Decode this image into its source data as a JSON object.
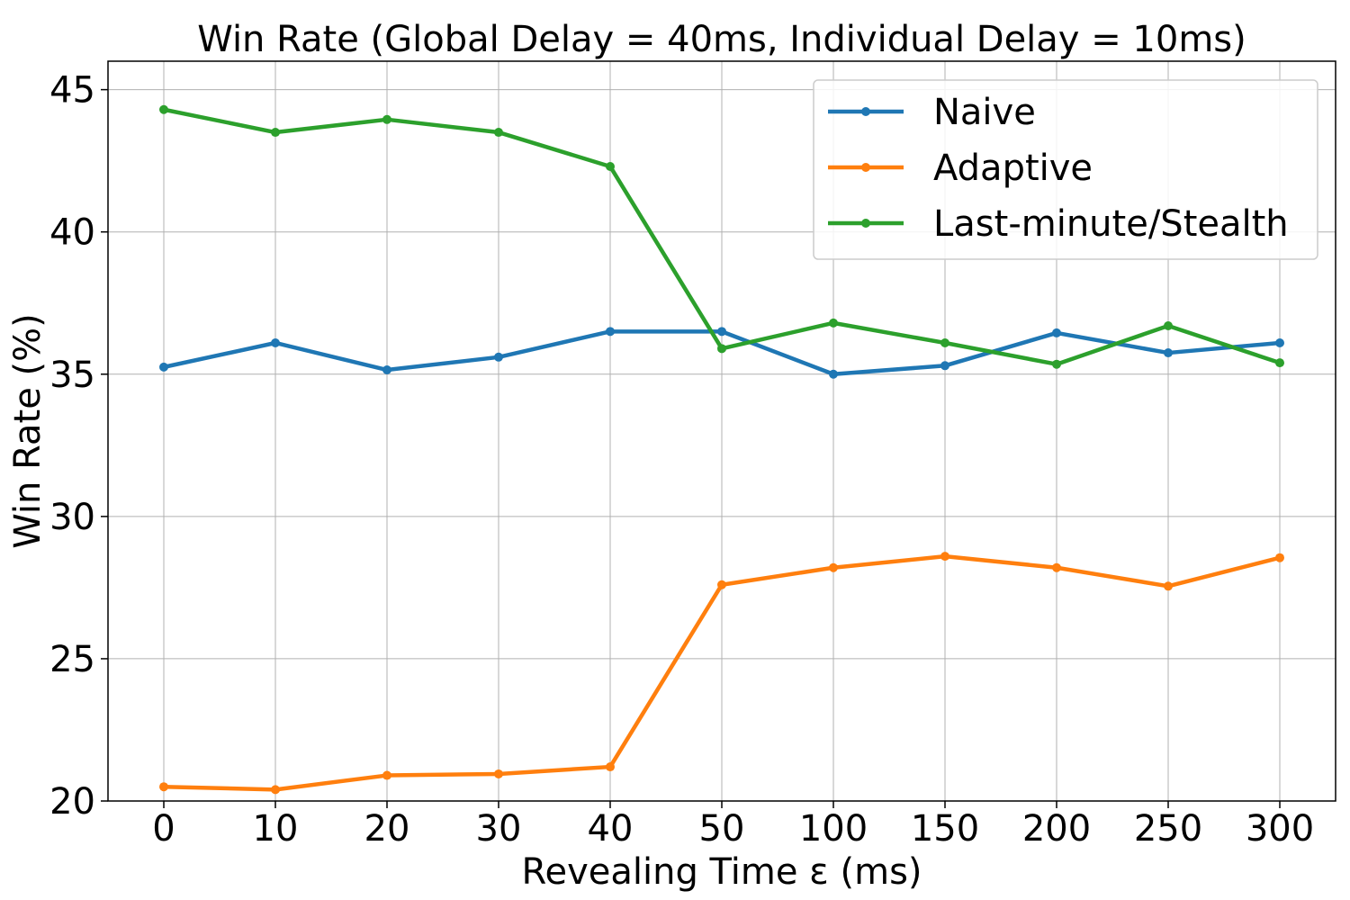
{
  "chart_data": {
    "type": "line",
    "title": "Win Rate (Global Delay = 40ms, Individual Delay = 10ms)",
    "xlabel": "Revealing Time ε (ms)",
    "ylabel": "Win Rate (%)",
    "categories": [
      "0",
      "10",
      "20",
      "30",
      "40",
      "50",
      "100",
      "150",
      "200",
      "250",
      "300"
    ],
    "ylim": [
      20,
      46
    ],
    "yticks": [
      20,
      25,
      30,
      35,
      40,
      45
    ],
    "grid": true,
    "legend_position": "top-right",
    "series": [
      {
        "name": "Naive",
        "color": "#1f77b4",
        "values": [
          35.25,
          36.1,
          35.15,
          35.6,
          36.5,
          36.5,
          35.0,
          35.3,
          36.45,
          35.75,
          36.1
        ]
      },
      {
        "name": "Adaptive",
        "color": "#ff7f0e",
        "values": [
          20.5,
          20.4,
          20.9,
          20.95,
          21.2,
          27.6,
          28.2,
          28.6,
          28.2,
          27.55,
          28.55
        ]
      },
      {
        "name": "Last-minute/Stealth",
        "color": "#2ca02c",
        "values": [
          44.3,
          43.5,
          43.95,
          43.5,
          42.3,
          35.9,
          36.8,
          36.1,
          35.35,
          36.7,
          35.4
        ]
      }
    ]
  }
}
